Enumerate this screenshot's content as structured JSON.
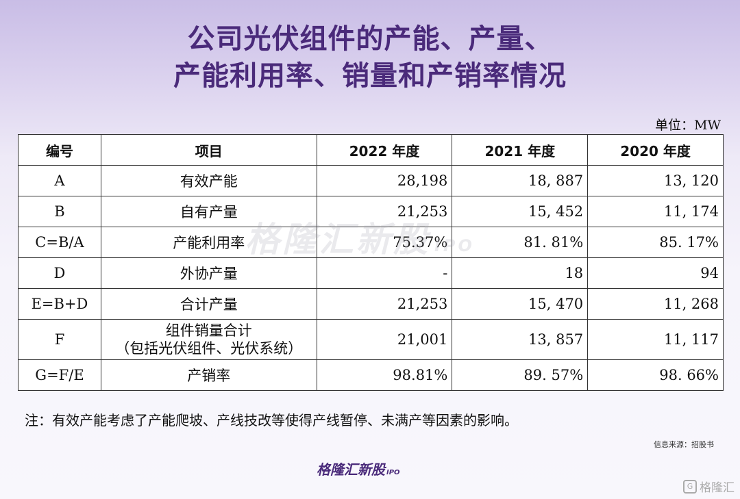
{
  "title": {
    "line1": "公司光伏组件的产能、产量、",
    "line2": "产能利用率、销量和产销率情况"
  },
  "unit": "单位：MW",
  "watermark": {
    "text": "格隆汇新股",
    "ipo": "IPO"
  },
  "table": {
    "headers": [
      "编号",
      "项目",
      "2022 年度",
      "2021 年度",
      "2020 年度"
    ],
    "rows": [
      {
        "code": "A",
        "item": "有效产能",
        "item2": "",
        "y2022": "28,198",
        "y2021": "18, 887",
        "y2020": "13, 120"
      },
      {
        "code": "B",
        "item": "自有产量",
        "item2": "",
        "y2022": "21,253",
        "y2021": "15, 452",
        "y2020": "11, 174"
      },
      {
        "code": "C=B/A",
        "item": "产能利用率",
        "item2": "",
        "y2022": "75.37%",
        "y2021": "81. 81%",
        "y2020": "85. 17%"
      },
      {
        "code": "D",
        "item": "外协产量",
        "item2": "",
        "y2022": "-",
        "y2021": "18",
        "y2020": "94"
      },
      {
        "code": "E=B+D",
        "item": "合计产量",
        "item2": "",
        "y2022": "21,253",
        "y2021": "15, 470",
        "y2020": "11, 268"
      },
      {
        "code": "F",
        "item": "组件销量合计",
        "item2": "（包括光伏组件、光伏系统）",
        "y2022": "21,001",
        "y2021": "13, 857",
        "y2020": "11, 117"
      },
      {
        "code": "G=F/E",
        "item": "产销率",
        "item2": "",
        "y2022": "98.81%",
        "y2021": "89. 57%",
        "y2020": "98. 66%"
      }
    ]
  },
  "note": "注：有效产能考虑了产能爬坡、产线技改等使得产线暂停、未满产等因素的影响。",
  "source": "信息来源：招股书",
  "footer_logo": {
    "text": "格隆汇新股",
    "ipo": "IPO"
  },
  "corner_brand": {
    "icon": "G",
    "text": "格隆汇"
  }
}
